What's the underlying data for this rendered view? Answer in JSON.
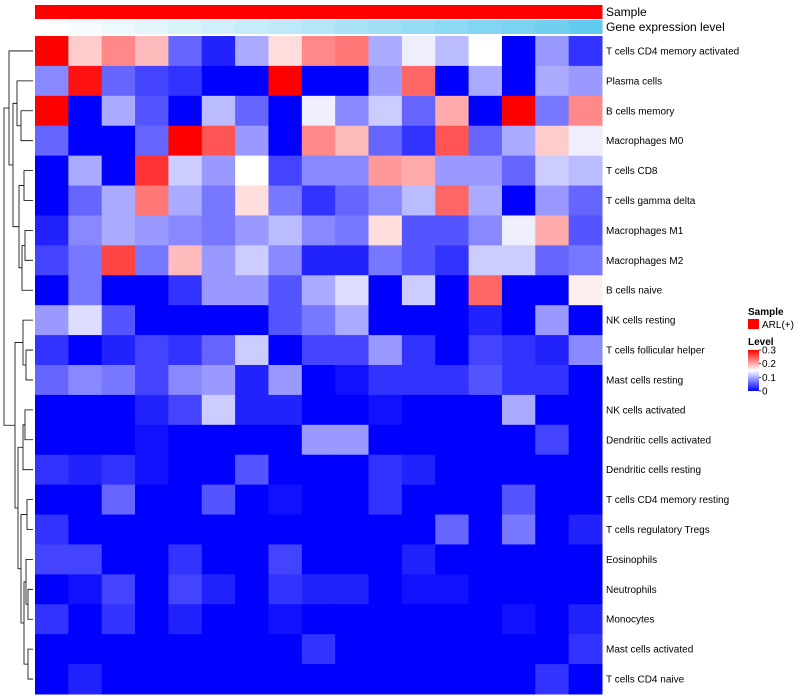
{
  "chart_data": {
    "type": "heatmap",
    "annotation_tracks": {
      "sample_label": "Sample",
      "expression_label": "Gene expression level"
    },
    "legend": {
      "sample_title": "Sample",
      "sample_entry": "ARL(+)",
      "level_title": "Level",
      "level_ticks": [
        "0.3",
        "0.2",
        "0.1",
        "0"
      ],
      "level_tick_values": [
        0.3,
        0.2,
        0.1,
        0
      ]
    },
    "colors": {
      "high": "#ff0000",
      "mid": "#ffffff",
      "low": "#0000ff",
      "sample": "#ff0000",
      "expression_low": "#ffffff",
      "expression_high": "#62cbef"
    },
    "color_scale": {
      "min": 0,
      "mid": 0.15,
      "max": 0.3
    },
    "expression_track_values": [
      0.0,
      0.06,
      0.12,
      0.18,
      0.24,
      0.3,
      0.36,
      0.42,
      0.48,
      0.55,
      0.61,
      0.67,
      0.73,
      0.79,
      0.85,
      0.91,
      1.0
    ],
    "rows": [
      {
        "label": "T cells CD4 memory activated",
        "values": [
          0.3,
          0.18,
          0.22,
          0.19,
          0.06,
          0.02,
          0.1,
          0.17,
          0.22,
          0.23,
          0.1,
          0.14,
          0.11,
          0.15,
          0.0,
          0.09,
          0.03
        ]
      },
      {
        "label": "Plasma cells",
        "values": [
          0.08,
          0.29,
          0.06,
          0.04,
          0.03,
          0.0,
          0.0,
          0.3,
          0.0,
          0.0,
          0.09,
          0.24,
          0.0,
          0.1,
          0.0,
          0.1,
          0.09
        ]
      },
      {
        "label": "B cells memory",
        "values": [
          0.3,
          0.0,
          0.1,
          0.05,
          0.0,
          0.11,
          0.06,
          0.0,
          0.14,
          0.08,
          0.12,
          0.06,
          0.2,
          0.0,
          0.3,
          0.07,
          0.22
        ]
      },
      {
        "label": "Macrophages M0",
        "values": [
          0.06,
          0.0,
          0.0,
          0.06,
          0.3,
          0.25,
          0.09,
          0.0,
          0.22,
          0.19,
          0.06,
          0.03,
          0.25,
          0.06,
          0.1,
          0.18,
          0.14
        ]
      },
      {
        "label": "T cells CD8",
        "values": [
          0.0,
          0.1,
          0.0,
          0.27,
          0.12,
          0.09,
          0.15,
          0.04,
          0.08,
          0.08,
          0.21,
          0.2,
          0.09,
          0.09,
          0.06,
          0.12,
          0.11
        ]
      },
      {
        "label": "T cells gamma delta",
        "values": [
          0.0,
          0.06,
          0.1,
          0.23,
          0.1,
          0.07,
          0.17,
          0.07,
          0.03,
          0.06,
          0.08,
          0.11,
          0.24,
          0.1,
          0.0,
          0.09,
          0.06
        ]
      },
      {
        "label": "Macrophages M1",
        "values": [
          0.02,
          0.08,
          0.1,
          0.09,
          0.08,
          0.07,
          0.09,
          0.11,
          0.08,
          0.07,
          0.17,
          0.05,
          0.05,
          0.08,
          0.14,
          0.2,
          0.05
        ]
      },
      {
        "label": "Macrophages M2",
        "values": [
          0.04,
          0.07,
          0.26,
          0.07,
          0.19,
          0.09,
          0.12,
          0.08,
          0.02,
          0.02,
          0.07,
          0.05,
          0.03,
          0.12,
          0.12,
          0.06,
          0.07
        ]
      },
      {
        "label": "B cells naive",
        "values": [
          0.0,
          0.07,
          0.0,
          0.0,
          0.03,
          0.09,
          0.09,
          0.05,
          0.1,
          0.13,
          0.0,
          0.12,
          0.0,
          0.24,
          0.0,
          0.0,
          0.16
        ]
      },
      {
        "label": "NK cells resting",
        "values": [
          0.09,
          0.13,
          0.05,
          0.0,
          0.0,
          0.0,
          0.0,
          0.05,
          0.07,
          0.1,
          0.0,
          0.0,
          0.0,
          0.02,
          0.0,
          0.09,
          0.0
        ]
      },
      {
        "label": "T cells follicular helper",
        "values": [
          0.03,
          0.0,
          0.02,
          0.04,
          0.03,
          0.06,
          0.12,
          0.0,
          0.04,
          0.04,
          0.09,
          0.03,
          0.0,
          0.04,
          0.03,
          0.02,
          0.08
        ]
      },
      {
        "label": "Mast cells resting",
        "values": [
          0.06,
          0.08,
          0.07,
          0.04,
          0.08,
          0.09,
          0.02,
          0.09,
          0.0,
          0.01,
          0.03,
          0.03,
          0.03,
          0.05,
          0.03,
          0.03,
          0.0
        ]
      },
      {
        "label": "NK cells activated",
        "values": [
          0.0,
          0.0,
          0.0,
          0.02,
          0.04,
          0.12,
          0.02,
          0.02,
          0.0,
          0.0,
          0.01,
          0.0,
          0.0,
          0.0,
          0.1,
          0.0,
          0.0
        ]
      },
      {
        "label": "Dendritic cells activated",
        "values": [
          0.0,
          0.0,
          0.0,
          0.01,
          0.0,
          0.0,
          0.0,
          0.0,
          0.09,
          0.09,
          0.0,
          0.0,
          0.0,
          0.0,
          0.0,
          0.04,
          0.0
        ]
      },
      {
        "label": "Dendritic cells resting",
        "values": [
          0.03,
          0.02,
          0.03,
          0.01,
          0.0,
          0.0,
          0.05,
          0.0,
          0.0,
          0.0,
          0.03,
          0.02,
          0.0,
          0.0,
          0.0,
          0.0,
          0.0
        ]
      },
      {
        "label": "T cells CD4 memory resting",
        "values": [
          0.0,
          0.0,
          0.06,
          0.0,
          0.0,
          0.05,
          0.0,
          0.01,
          0.0,
          0.0,
          0.03,
          0.0,
          0.0,
          0.0,
          0.05,
          0.0,
          0.0
        ]
      },
      {
        "label": "T cells regulatory  Tregs",
        "values": [
          0.03,
          0.0,
          0.0,
          0.0,
          0.0,
          0.0,
          0.0,
          0.0,
          0.0,
          0.0,
          0.0,
          0.0,
          0.06,
          0.0,
          0.07,
          0.0,
          0.02
        ]
      },
      {
        "label": "Eosinophils",
        "values": [
          0.04,
          0.04,
          0.0,
          0.0,
          0.03,
          0.0,
          0.0,
          0.04,
          0.0,
          0.0,
          0.0,
          0.02,
          0.0,
          0.0,
          0.0,
          0.0,
          0.0
        ]
      },
      {
        "label": "Neutrophils",
        "values": [
          0.0,
          0.01,
          0.04,
          0.0,
          0.04,
          0.02,
          0.0,
          0.03,
          0.02,
          0.02,
          0.0,
          0.01,
          0.01,
          0.0,
          0.0,
          0.0,
          0.0
        ]
      },
      {
        "label": "Monocytes",
        "values": [
          0.03,
          0.0,
          0.03,
          0.0,
          0.02,
          0.0,
          0.0,
          0.01,
          0.0,
          0.0,
          0.0,
          0.0,
          0.0,
          0.0,
          0.01,
          0.0,
          0.02
        ]
      },
      {
        "label": "Mast cells activated",
        "values": [
          0.0,
          0.0,
          0.0,
          0.0,
          0.0,
          0.0,
          0.0,
          0.0,
          0.03,
          0.0,
          0.0,
          0.0,
          0.0,
          0.0,
          0.0,
          0.0,
          0.03
        ]
      },
      {
        "label": "T cells CD4 naive",
        "values": [
          0.0,
          0.02,
          0.0,
          0.0,
          0.0,
          0.0,
          0.0,
          0.0,
          0.0,
          0.0,
          0.0,
          0.0,
          0.0,
          0.0,
          0.0,
          0.03,
          0.0
        ]
      }
    ]
  }
}
